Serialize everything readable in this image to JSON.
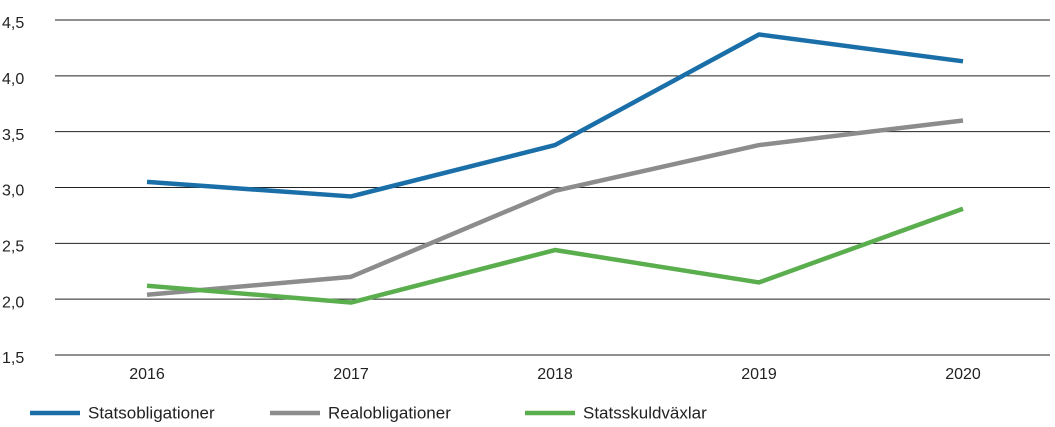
{
  "chart_data": {
    "type": "line",
    "categories": [
      "2016",
      "2017",
      "2018",
      "2019",
      "2020"
    ],
    "series": [
      {
        "name": "Statsobligationer",
        "color": "#1a6fa8",
        "values": [
          3.05,
          2.92,
          3.38,
          4.37,
          4.13
        ]
      },
      {
        "name": "Realobligationer",
        "color": "#8c8c8c",
        "values": [
          2.04,
          2.2,
          2.97,
          3.38,
          3.6
        ]
      },
      {
        "name": "Statsskuldväxlar",
        "color": "#5aae4e",
        "values": [
          2.12,
          1.97,
          2.44,
          2.15,
          2.81
        ]
      }
    ],
    "ylim": [
      1.5,
      4.5
    ],
    "yticks": [
      {
        "value": 1.5,
        "label": "1,5"
      },
      {
        "value": 2,
        "label": "2,0"
      },
      {
        "value": 2.5,
        "label": "2,5"
      },
      {
        "value": 3,
        "label": "3,0"
      },
      {
        "value": 3.5,
        "label": "3,5"
      },
      {
        "value": 4,
        "label": "4,0"
      },
      {
        "value": 4.5,
        "label": "4,5"
      }
    ],
    "grid": true,
    "legend": "bottom"
  }
}
